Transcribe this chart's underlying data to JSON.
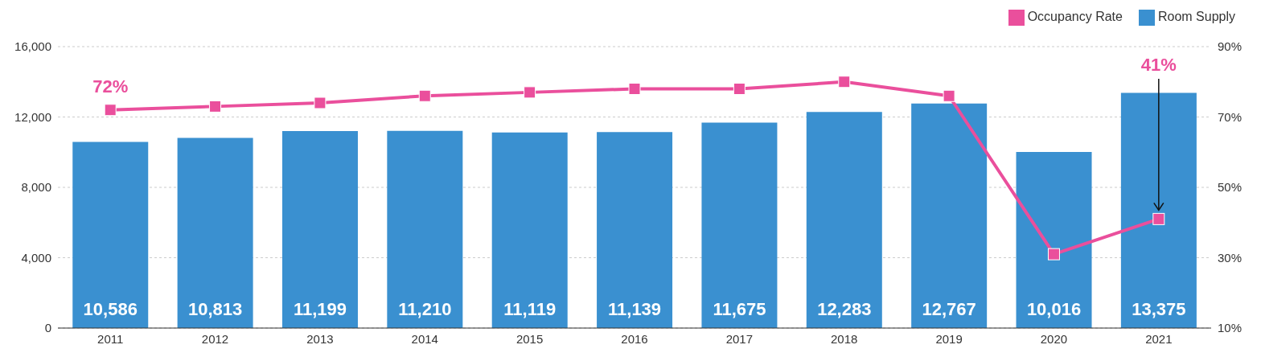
{
  "chart_data": {
    "type": "bar",
    "categories": [
      "2011",
      "2012",
      "2013",
      "2014",
      "2015",
      "2016",
      "2017",
      "2018",
      "2019",
      "2020",
      "2021"
    ],
    "series": [
      {
        "name": "Room Supply",
        "color": "#3a90d0",
        "values": [
          10586,
          10813,
          11199,
          11210,
          11119,
          11139,
          11675,
          12283,
          12767,
          10016,
          13375
        ],
        "value_labels": [
          "10,586",
          "10,813",
          "11,199",
          "11,210",
          "11,119",
          "11,139",
          "11,675",
          "12,283",
          "12,767",
          "10,016",
          "13,375"
        ]
      },
      {
        "name": "Occupancy Rate",
        "type": "line",
        "axis": "y2",
        "color": "#ea4f9c",
        "values": [
          72,
          73,
          74,
          76,
          77,
          78,
          78,
          80,
          76,
          31,
          41
        ],
        "value_labels": [
          "72%",
          null,
          null,
          null,
          null,
          null,
          null,
          null,
          null,
          null,
          "41%"
        ]
      }
    ],
    "ylim": [
      0,
      16000
    ],
    "yticks": [
      {
        "value": 0,
        "label": "0"
      },
      {
        "value": 4000,
        "label": "4,000"
      },
      {
        "value": 8000,
        "label": "8,000"
      },
      {
        "value": 12000,
        "label": "12,000"
      },
      {
        "value": 16000,
        "label": "16,000"
      }
    ],
    "y2lim": [
      10,
      90
    ],
    "y2ticks": [
      {
        "value": 10,
        "label": "10%"
      },
      {
        "value": 30,
        "label": "30%"
      },
      {
        "value": 50,
        "label": "50%"
      },
      {
        "value": 70,
        "label": "70%"
      },
      {
        "value": 90,
        "label": "90%"
      }
    ],
    "grid": "y",
    "legend": "top right",
    "marker": "square"
  }
}
